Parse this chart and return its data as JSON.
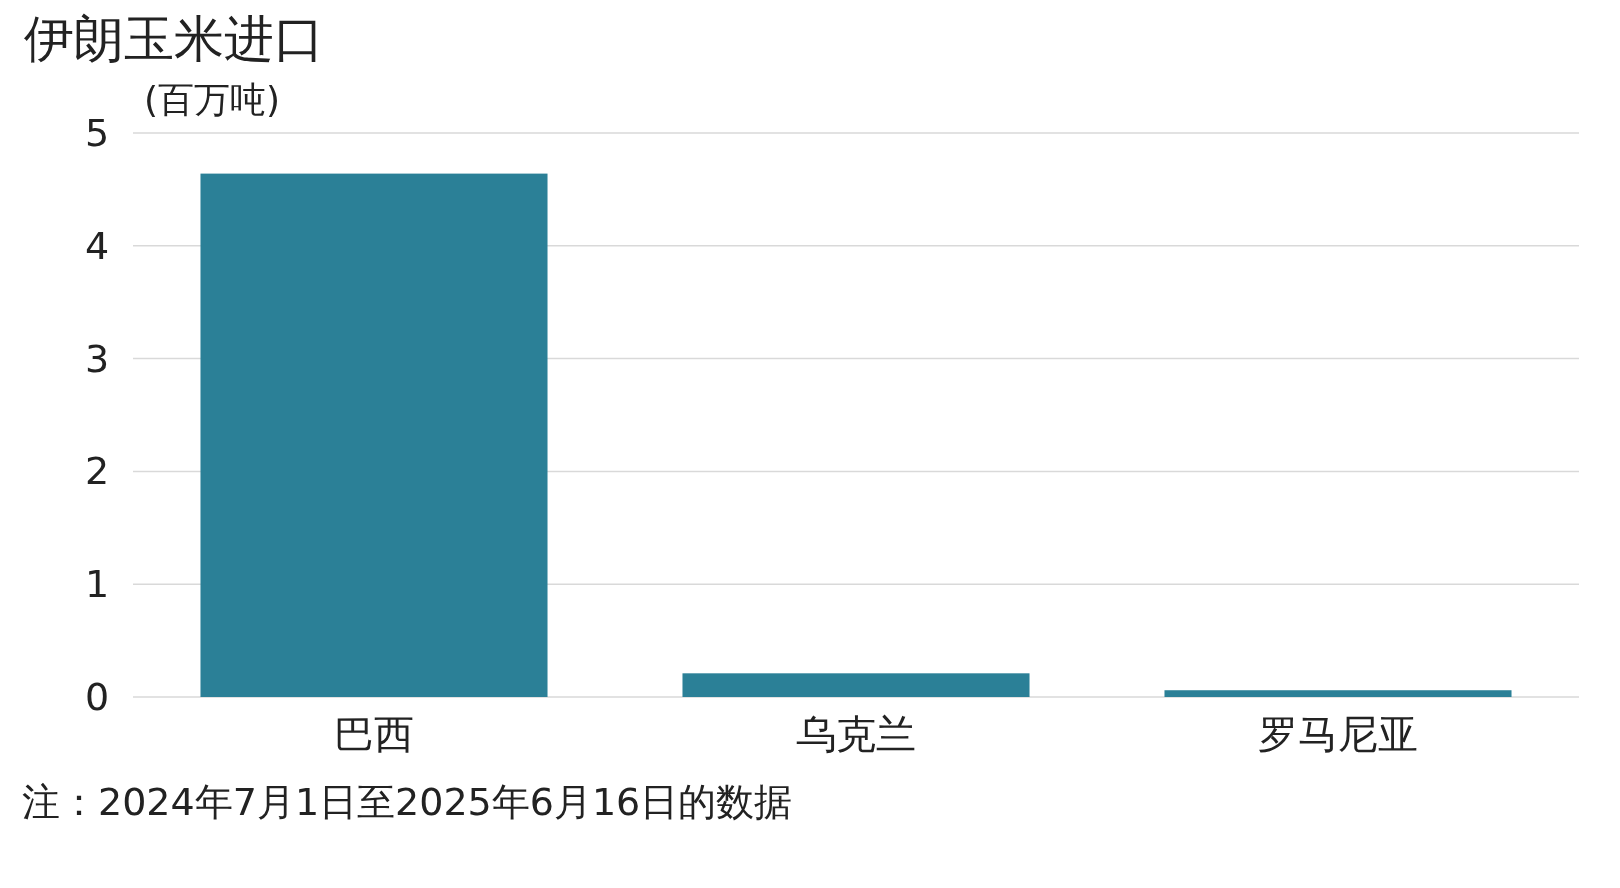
{
  "chart_data": {
    "type": "bar",
    "title": "伊朗玉米进口",
    "ylabel": "(百万吨)",
    "categories": [
      "巴西",
      "乌克兰",
      "罗马尼亚"
    ],
    "values": [
      4.64,
      0.21,
      0.06
    ],
    "color": "#2b8097",
    "ylim": [
      0,
      5
    ],
    "yticks": [
      0,
      1,
      2,
      3,
      4,
      5
    ],
    "grid": "y",
    "annotations": [
      "注：2024年7月1日至2025年6月16日的数据"
    ]
  }
}
